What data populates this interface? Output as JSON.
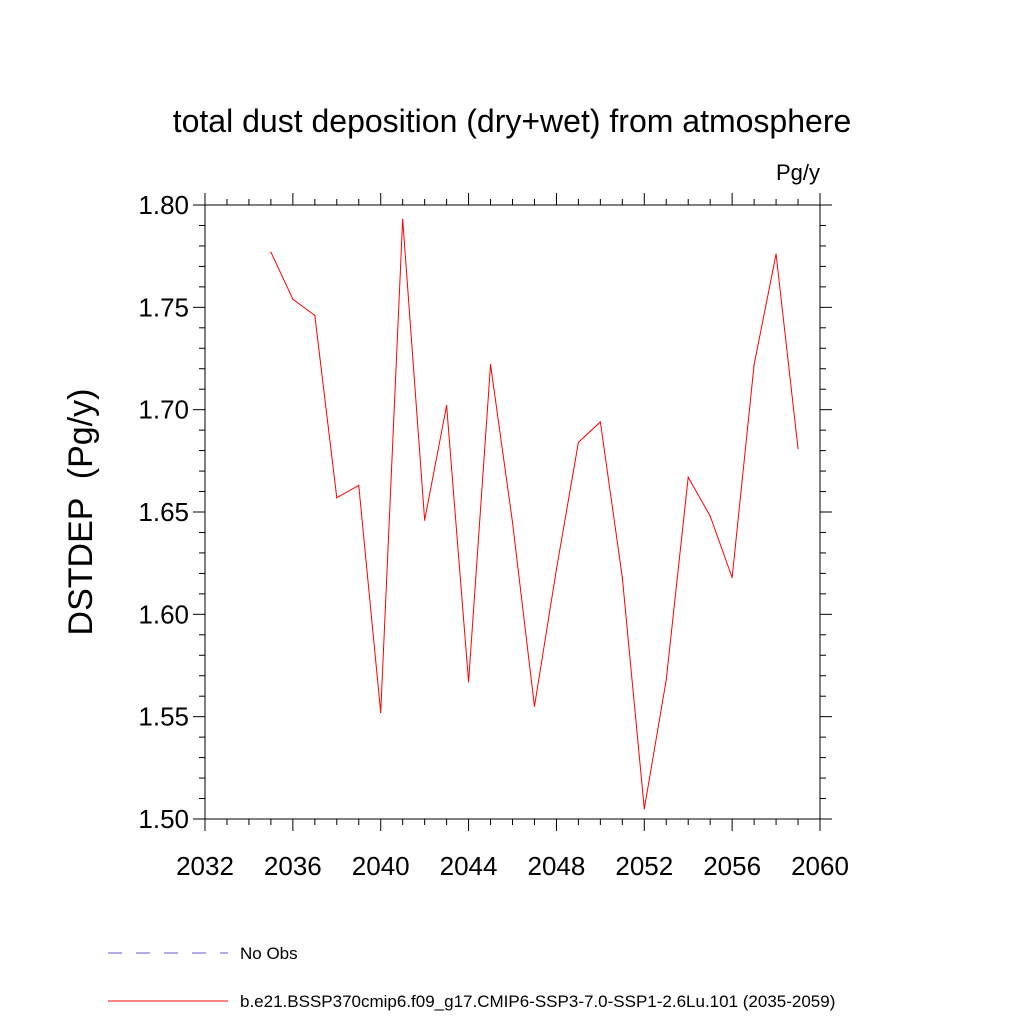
{
  "chart_data": {
    "type": "line",
    "title": "total dust deposition (dry+wet) from atmosphere",
    "units_label": "Pg/y",
    "ylabel": "DSTDEP  (Pg/y)",
    "xlabel": "",
    "xlim": [
      2032,
      2060
    ],
    "ylim": [
      1.5,
      1.8
    ],
    "x_ticks": [
      2032,
      2036,
      2040,
      2044,
      2048,
      2052,
      2056,
      2060
    ],
    "y_ticks": [
      1.5,
      1.55,
      1.6,
      1.65,
      1.7,
      1.75,
      1.8
    ],
    "y_tick_labels": [
      "1.50",
      "1.55",
      "1.60",
      "1.65",
      "1.70",
      "1.75",
      "1.80"
    ],
    "grid": false,
    "series": [
      {
        "name": "b.e21.BSSP370cmip6.f09_g17.CMIP6-SSP3-7.0-SSP1-2.6Lu.101 (2035-2059)",
        "color": "#ff0000",
        "x": [
          2035,
          2036,
          2037,
          2038,
          2039,
          2040,
          2041,
          2042,
          2043,
          2044,
          2045,
          2046,
          2047,
          2048,
          2049,
          2050,
          2051,
          2052,
          2053,
          2054,
          2055,
          2056,
          2057,
          2058,
          2059
        ],
        "values": [
          1.777,
          1.754,
          1.746,
          1.657,
          1.663,
          1.552,
          1.793,
          1.646,
          1.702,
          1.567,
          1.722,
          1.645,
          1.555,
          1.622,
          1.684,
          1.694,
          1.618,
          1.505,
          1.568,
          1.667,
          1.648,
          1.618,
          1.722,
          1.776,
          1.681
        ]
      }
    ],
    "legend": [
      {
        "label": "No Obs",
        "style": "dashed",
        "color": "#6a5acd"
      },
      {
        "label": "b.e21.BSSP370cmip6.f09_g17.CMIP6-SSP3-7.0-SSP1-2.6Lu.101 (2035-2059)",
        "style": "solid",
        "color": "#ff0000"
      }
    ]
  }
}
